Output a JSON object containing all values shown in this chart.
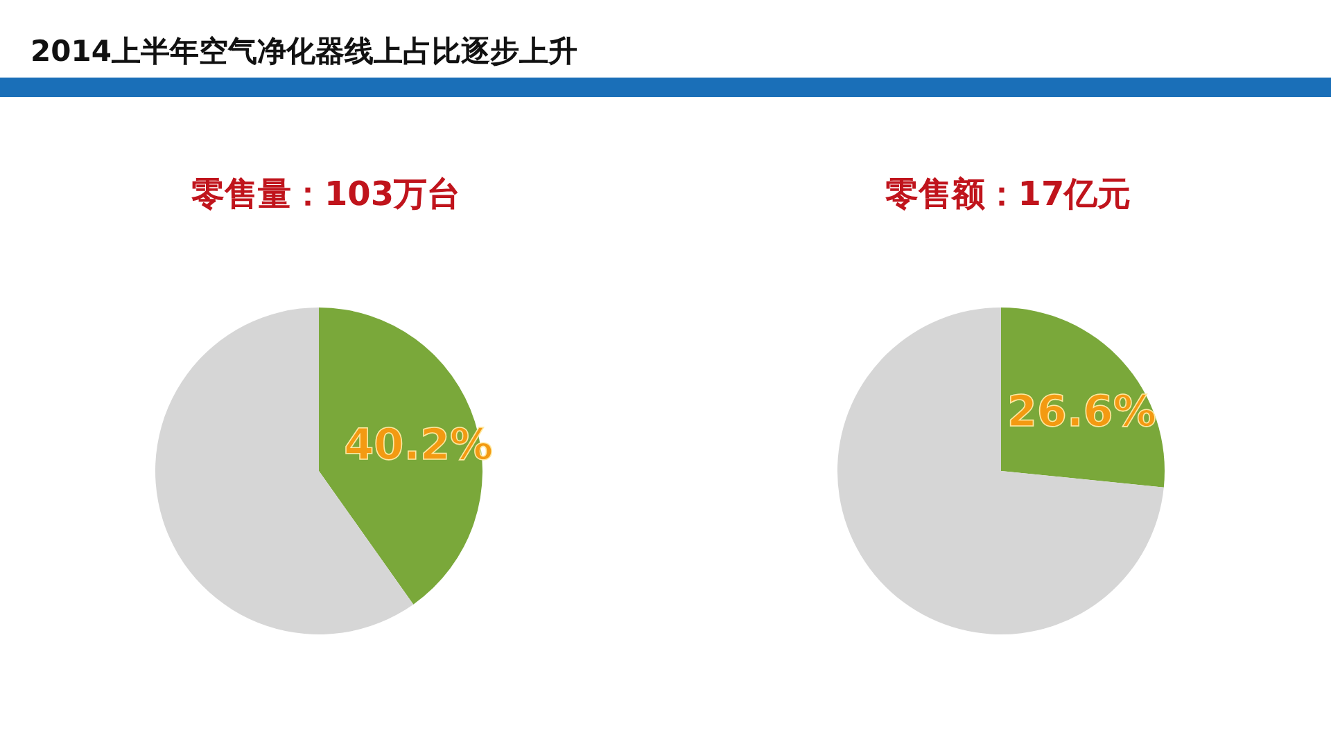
{
  "chart_data": [
    {
      "type": "other",
      "title": "2014上半年空气净化器线上占比逐步上升"
    },
    {
      "type": "pie",
      "title": "零售量：103万台",
      "categories": [
        null,
        null
      ],
      "values": [
        40.2,
        59.8
      ],
      "colors": [
        "#7aa83a",
        "#d6d6d6"
      ],
      "value_labels": [
        "40.2%",
        null
      ]
    },
    {
      "type": "pie",
      "title": "零售额：17亿元",
      "categories": [
        null,
        null
      ],
      "values": [
        26.6,
        73.4
      ],
      "colors": [
        "#7aa83a",
        "#d6d6d6"
      ],
      "value_labels": [
        "26.6%",
        null
      ]
    }
  ]
}
